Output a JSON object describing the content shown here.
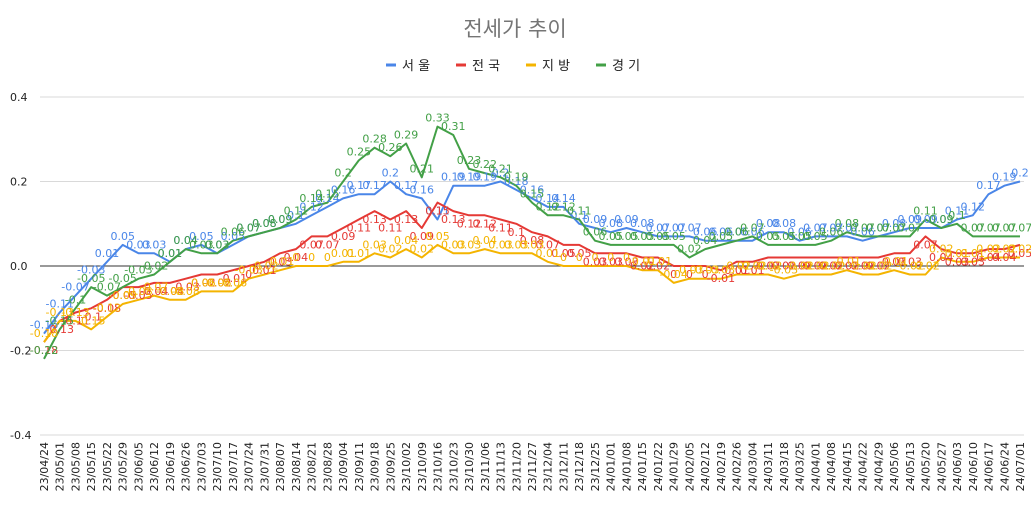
{
  "chart_data": {
    "type": "line",
    "title": "전세가 추이",
    "xlabel": "",
    "ylabel": "",
    "ylim": [
      -0.4,
      0.4
    ],
    "yticks": [
      "0.4",
      "0.2",
      "0.0",
      "-0.2",
      "-0.4"
    ],
    "ytick_values": [
      0.4,
      0.2,
      0.0,
      -0.2,
      -0.4
    ],
    "legend_position": "top",
    "grid": true,
    "x": [
      "23/04/24",
      "23/05/01",
      "23/05/08",
      "23/05/15",
      "23/05/22",
      "23/05/29",
      "23/06/05",
      "23/06/12",
      "23/06/19",
      "23/06/26",
      "23/07/03",
      "23/07/10",
      "23/07/17",
      "23/07/24",
      "23/07/31",
      "23/08/07",
      "23/08/14",
      "23/08/21",
      "23/08/28",
      "23/09/04",
      "23/09/11",
      "23/09/18",
      "23/09/25",
      "23/10/02",
      "23/10/09",
      "23/10/16",
      "23/10/23",
      "23/10/30",
      "23/11/06",
      "23/11/13",
      "23/11/20",
      "23/11/27",
      "23/12/04",
      "23/12/11",
      "23/12/18",
      "23/12/25",
      "24/01/01",
      "24/01/08",
      "24/01/15",
      "24/01/22",
      "24/01/29",
      "24/02/05",
      "24/02/12",
      "24/02/19",
      "24/02/26",
      "24/03/04",
      "24/03/11",
      "24/03/18",
      "24/03/25",
      "24/04/01",
      "24/04/08",
      "24/04/15",
      "24/04/22",
      "24/04/29",
      "24/05/06",
      "24/05/13",
      "24/05/20",
      "24/05/27",
      "24/06/03",
      "24/06/10",
      "24/06/17",
      "24/06/24",
      "24/07/01"
    ],
    "series": [
      {
        "name": "서 울",
        "color": "#4a86e8",
        "values": [
          -0.16,
          -0.11,
          -0.07,
          -0.03,
          0.01,
          0.05,
          0.03,
          0.03,
          0.01,
          0.04,
          0.05,
          0.03,
          0.05,
          0.07,
          0.08,
          0.09,
          0.1,
          0.12,
          0.14,
          0.16,
          0.17,
          0.17,
          0.2,
          0.17,
          0.16,
          0.11,
          0.19,
          0.19,
          0.19,
          0.2,
          0.18,
          0.16,
          0.14,
          0.14,
          0.1,
          0.09,
          0.08,
          0.09,
          0.08,
          0.07,
          0.07,
          0.07,
          0.06,
          0.06,
          0.06,
          0.06,
          0.08,
          0.08,
          0.06,
          0.07,
          0.07,
          0.07,
          0.06,
          0.07,
          0.08,
          0.09,
          0.09,
          0.09,
          0.11,
          0.12,
          0.17,
          0.19,
          0.2
        ]
      },
      {
        "name": "전 국",
        "color": "#e53935",
        "values": [
          -0.18,
          -0.13,
          -0.11,
          -0.1,
          -0.08,
          -0.05,
          -0.05,
          -0.04,
          -0.04,
          -0.03,
          -0.02,
          -0.02,
          -0.01,
          0.0,
          0.01,
          0.03,
          0.04,
          0.07,
          0.07,
          0.09,
          0.11,
          0.13,
          0.11,
          0.13,
          0.09,
          0.15,
          0.13,
          0.12,
          0.12,
          0.11,
          0.1,
          0.08,
          0.07,
          0.05,
          0.05,
          0.03,
          0.03,
          0.03,
          0.02,
          0.02,
          0.0,
          0.0,
          0.0,
          -0.01,
          0.01,
          0.01,
          0.02,
          0.02,
          0.02,
          0.02,
          0.02,
          0.02,
          0.02,
          0.02,
          0.03,
          0.03,
          0.07,
          0.04,
          0.03,
          0.03,
          0.04,
          0.04,
          0.05
        ]
      },
      {
        "name": "지 방",
        "color": "#f4b400",
        "values": [
          -0.18,
          -0.13,
          -0.13,
          -0.15,
          -0.12,
          -0.09,
          -0.08,
          -0.07,
          -0.08,
          -0.08,
          -0.06,
          -0.06,
          -0.06,
          -0.03,
          -0.02,
          -0.01,
          0.0,
          0.0,
          0.0,
          0.01,
          0.01,
          0.03,
          0.02,
          0.04,
          0.02,
          0.05,
          0.03,
          0.03,
          0.04,
          0.03,
          0.03,
          0.03,
          0.01,
          0.0,
          0.0,
          0.0,
          0.0,
          0.0,
          -0.01,
          -0.01,
          -0.04,
          -0.03,
          -0.03,
          -0.03,
          -0.02,
          -0.02,
          -0.02,
          -0.03,
          -0.02,
          -0.02,
          -0.02,
          -0.01,
          -0.02,
          -0.02,
          -0.01,
          -0.02,
          -0.02,
          0.02,
          0.01,
          0.01,
          0.02,
          0.02,
          0.02
        ]
      },
      {
        "name": "경 기",
        "color": "#43a047",
        "values": [
          -0.22,
          -0.15,
          -0.1,
          -0.05,
          -0.07,
          -0.05,
          -0.03,
          -0.02,
          0.01,
          0.04,
          0.03,
          0.03,
          0.06,
          0.07,
          0.08,
          0.09,
          0.11,
          0.14,
          0.15,
          0.2,
          0.25,
          0.28,
          0.26,
          0.29,
          0.21,
          0.33,
          0.31,
          0.23,
          0.22,
          0.21,
          0.19,
          0.15,
          0.12,
          0.12,
          0.11,
          0.06,
          0.05,
          0.05,
          0.05,
          0.05,
          0.05,
          0.02,
          0.04,
          0.05,
          0.06,
          0.07,
          0.05,
          0.05,
          0.05,
          0.05,
          0.06,
          0.08,
          0.07,
          0.07,
          0.07,
          0.07,
          0.11,
          0.09,
          0.1,
          0.07,
          0.07,
          0.07,
          0.07
        ]
      }
    ],
    "data_labels": true
  }
}
